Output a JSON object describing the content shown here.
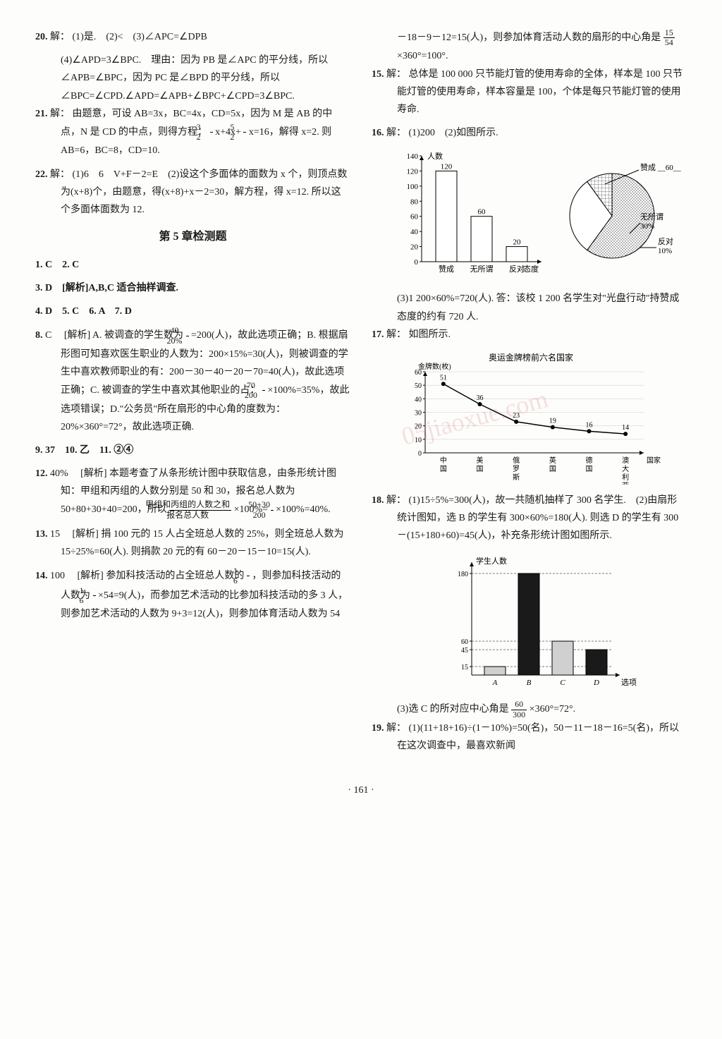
{
  "left": {
    "q20": {
      "num": "20.",
      "label": "解：",
      "text1": "(1)是.　(2)<　(3)∠APC=∠DPB",
      "text2": "(4)∠APD=3∠BPC.　理由：因为 PB 是∠APC 的平分线，所以∠APB=∠BPC，因为 PC 是∠BPD 的平分线，所以∠BPC=∠CPD.∠APD=∠APB+∠BPC+∠CPD=3∠BPC."
    },
    "q21": {
      "num": "21.",
      "label": "解：",
      "text1": "由题意，可设 AB=3x，BC=4x，CD=5x，因为 M 是 AB 的中点，N 是 CD 的中点，则得方程：",
      "frac1n": "3",
      "frac1d": "2",
      "text2": "x+4x+",
      "frac2n": "5",
      "frac2d": "2",
      "text3": "x=16，解得 x=2. 则 AB=6，BC=8，CD=10."
    },
    "q22": {
      "num": "22.",
      "label": "解：",
      "text": "(1)6　6　V+F－2=E　(2)设这个多面体的面数为 x 个，则顶点数为(x+8)个，由题意，得(x+8)+x－2=30，解方程，得 x=12. 所以这个多面体面数为 12."
    },
    "section": "第 5 章检测题",
    "a1": "1. C　2. C",
    "a3": "3. D　[解析]A,B,C 适合抽样调查.",
    "a4": "4. D　5. C　6. A　7. D",
    "a8": {
      "num": "8.",
      "ans": "C",
      "label": "[解析]",
      "text1": "A. 被调查的学生数为",
      "frac1n": "40",
      "frac1d": "20%",
      "text2": "=200(人)，故此选项正确；B. 根据扇形图可知喜欢医生职业的人数为：200×15%=30(人)，则被调查的学生中喜欢教师职业的有：200－30－40－20－70=40(人)，故此选项正确；C. 被调查的学生中喜欢其他职业的占：",
      "frac2n": "70",
      "frac2d": "200",
      "text3": "×100%=35%，故此选项错误；D.\"公务员\"所在扇形的中心角的度数为：20%×360°=72°，故此选项正确."
    },
    "a9": "9. 37　10. 乙　11. ②④",
    "a12": {
      "num": "12.",
      "ans": "40%",
      "label": "[解析]",
      "text1": "本题考查了从条形统计图中获取信息，由条形统计图知：甲组和丙组的人数分别是 50 和 30，报名总人数为 50+80+30+40=200，所以",
      "fracTopText": "甲组和丙组的人数之和",
      "fracBotText": "报名总人数",
      "text2": "×100%=",
      "frac2n": "50+30",
      "frac2d": "200",
      "text3": "×100%=40%."
    },
    "a13": {
      "num": "13.",
      "ans": "15",
      "label": "[解析]",
      "text": "捐 100 元的 15 人占全班总人数的 25%，则全班总人数为 15÷25%=60(人). 则捐款 20 元的有 60－20－15－10=15(人)."
    },
    "a14": {
      "num": "14.",
      "ans": "100",
      "label": "[解析]",
      "text1": "参加科技活动的占全班总人数的",
      "frac1n": "1",
      "frac1d": "6",
      "text2": "，则参加科技活动的人数为",
      "frac2n": "1",
      "frac2d": "6",
      "text3": "×54=9(人)，而参加艺术活动的比参加科技活动的多 3 人，则参加艺术活动的人数为 9+3=12(人)，则参加体育活动人数为 54"
    }
  },
  "right": {
    "a14cont": {
      "text1": "－18－9－12=15(人)，则参加体育活动人数的扇形的中心角是",
      "frac1n": "15",
      "frac1d": "54",
      "text2": "×360°=100°."
    },
    "a15": {
      "num": "15.",
      "label": "解：",
      "text": "总体是 100 000 只节能灯管的使用寿命的全体，样本是 100 只节能灯管的使用寿命，样本容量是 100，个体是每只节能灯管的使用寿命."
    },
    "a16": {
      "num": "16.",
      "label": "解：",
      "text": "(1)200　(2)如图所示."
    },
    "a16text3": "(3)1 200×60%=720(人). 答：该校 1 200 名学生对\"光盘行动\"持赞成态度的约有 720 人.",
    "a17": {
      "num": "17.",
      "label": "解：",
      "text": "如图所示."
    },
    "a18": {
      "num": "18.",
      "label": "解：",
      "text": "(1)15÷5%=300(人)，故一共随机抽样了 300 名学生.　(2)由扇形统计图知，选 B 的学生有 300×60%=180(人). 则选 D 的学生有 300－(15+180+60)=45(人)，补充条形统计图如图所示."
    },
    "a18text3pre": "(3)选 C 的所对应中心角是",
    "a18fracn": "60",
    "a18fracd": "300",
    "a18text3post": "×360°=72°.",
    "a19": {
      "num": "19.",
      "label": "解：",
      "text": "(1)(11+18+16)÷(1－10%)=50(名)，50－11－18－16=5(名)，所以在这次调查中，最喜欢新闻"
    }
  },
  "chart16bar": {
    "type": "bar",
    "ylabel": "人数",
    "xlabel": "态度",
    "ylim": [
      0,
      140
    ],
    "ytick_step": 20,
    "categories": [
      "赞成",
      "无所谓",
      "反对"
    ],
    "values": [
      120,
      60,
      20
    ],
    "value_labels": [
      "120",
      "60",
      "20"
    ],
    "bar_color": "#ffffff",
    "bar_border": "#000000",
    "axis_color": "#000000"
  },
  "chart16pie": {
    "type": "pie",
    "slices": [
      {
        "label": "赞成",
        "pct": 60,
        "color": "#ffffff",
        "hatch": "dense"
      },
      {
        "label": "无所谓",
        "pct": 30,
        "color": "#ffffff",
        "hatch": "none"
      },
      {
        "label": "反对",
        "pct": 10,
        "color": "#ffffff",
        "hatch": "grid"
      }
    ],
    "labels": {
      "approve": "赞成 __60__ %",
      "neutral": "无所谓\n30%",
      "oppose": "反对\n10%"
    }
  },
  "chart17": {
    "type": "line",
    "title": "奥运金牌榜前六名国家",
    "ylabel": "金牌数(枚)",
    "xlabel": "国家",
    "ylim": [
      0,
      60
    ],
    "ytick_step": 10,
    "categories": [
      "中国",
      "美国",
      "俄罗斯",
      "英国",
      "德国",
      "澳大利亚"
    ],
    "values": [
      51,
      36,
      23,
      19,
      16,
      14
    ],
    "value_labels": [
      "51",
      "36",
      "23",
      "19",
      "16",
      "14"
    ],
    "line_color": "#000000",
    "marker": "circle"
  },
  "chart18": {
    "type": "bar",
    "ylabel": "学生人数",
    "xlabel": "选项",
    "yticks": [
      15,
      45,
      60,
      180
    ],
    "categories": [
      "A",
      "B",
      "C",
      "D"
    ],
    "values": [
      15,
      180,
      60,
      45
    ],
    "bar_colors": [
      "#d0d0d0",
      "#1a1a1a",
      "#d0d0d0",
      "#1a1a1a"
    ],
    "axis_color": "#000000"
  },
  "pageNum": "· 161 ·",
  "colors": {
    "text": "#1a1a1a",
    "bg": "#fdfdfb",
    "watermark": "#cc4444"
  }
}
